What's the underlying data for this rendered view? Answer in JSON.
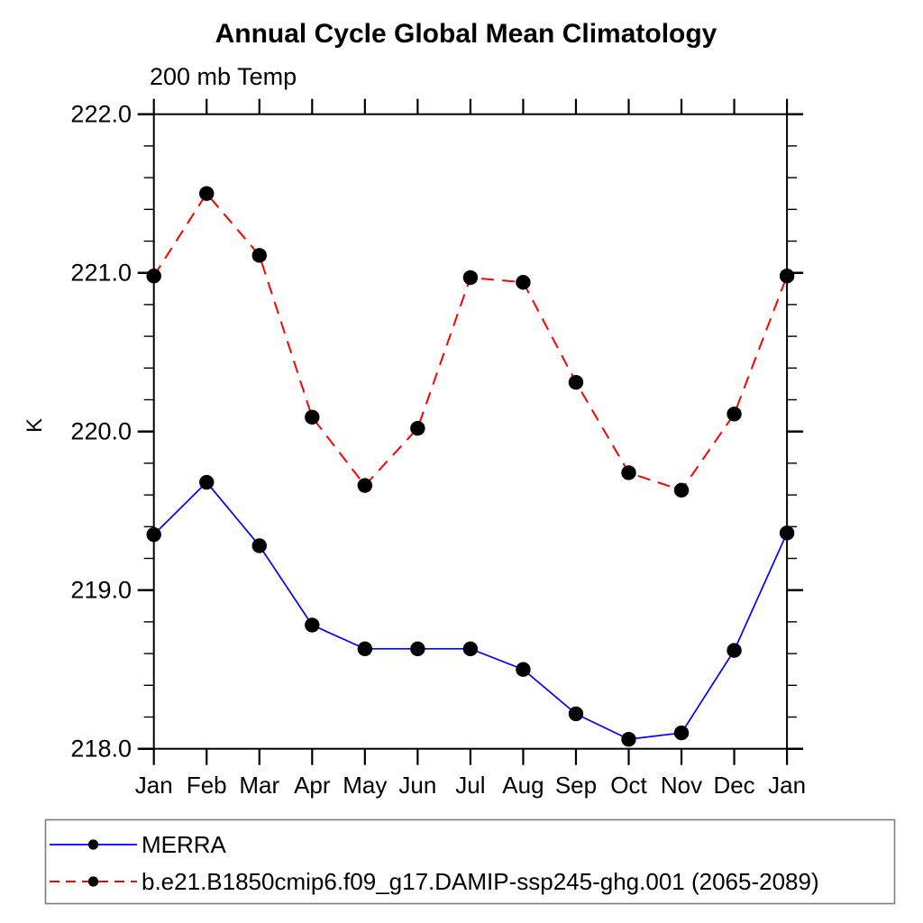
{
  "chart": {
    "title": "Annual Cycle Global Mean Climatology",
    "subtitle": "200 mb Temp",
    "ylabel": "K"
  },
  "chart_data": {
    "type": "line",
    "title": "Annual Cycle Global Mean Climatology",
    "subtitle": "200 mb Temp",
    "xlabel": "",
    "ylabel": "K",
    "categories": [
      "Jan",
      "Feb",
      "Mar",
      "Apr",
      "May",
      "Jun",
      "Jul",
      "Aug",
      "Sep",
      "Oct",
      "Nov",
      "Dec",
      "Jan"
    ],
    "ylim": [
      218.0,
      222.0
    ],
    "yticks": [
      218.0,
      219.0,
      220.0,
      221.0,
      222.0
    ],
    "ytick_labels": [
      "218.0",
      "219.0",
      "220.0",
      "221.0",
      "222.0"
    ],
    "y_minor_tick_interval": 0.2,
    "grid": false,
    "legend_position": "bottom-left-box",
    "series": [
      {
        "name": "MERRA",
        "color": "#0000ff",
        "line_style": "solid",
        "marker": "filled-circle",
        "marker_color": "#000000",
        "values": [
          219.35,
          219.68,
          219.28,
          218.78,
          218.63,
          218.63,
          218.63,
          218.5,
          218.22,
          218.06,
          218.1,
          218.62,
          219.36
        ]
      },
      {
        "name": "b.e21.B1850cmip6.f09_g17.DAMIP-ssp245-ghg.001 (2065-2089)",
        "color": "#ff0000",
        "line_style": "dashed",
        "marker": "filled-circle",
        "marker_color": "#000000",
        "values": [
          220.98,
          221.5,
          221.11,
          220.09,
          219.66,
          220.02,
          220.97,
          220.94,
          220.31,
          219.74,
          219.63,
          220.11,
          220.98
        ]
      }
    ],
    "axis_color": "#000000",
    "background_color": "#ffffff",
    "legend_border_color": "#7d7d7d"
  }
}
